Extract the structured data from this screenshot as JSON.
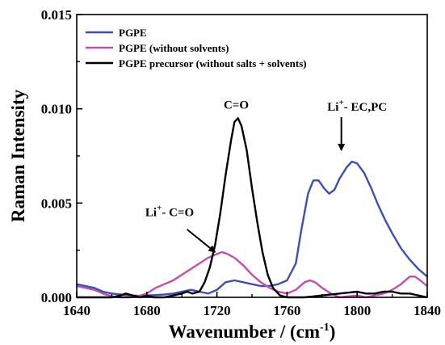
{
  "chart_data": {
    "type": "line",
    "title": "",
    "xlabel": "Wavenumber / (cm",
    "xlabel_sup": "-1",
    "xlabel_close": ")",
    "ylabel": "Raman Intensity",
    "xlim": [
      1640,
      1840
    ],
    "ylim": [
      0,
      0.015
    ],
    "x_ticks": [
      1640,
      1680,
      1720,
      1760,
      1800,
      1840
    ],
    "x_tick_labels": [
      "1640",
      "1680",
      "1720",
      "1760",
      "1800",
      "1840"
    ],
    "y_ticks": [
      0,
      0.005,
      0.01,
      0.015
    ],
    "y_tick_labels": [
      "0.000",
      "0.005",
      "0.010",
      "0.015"
    ],
    "grid": false,
    "legend_position": "top-left",
    "series": [
      {
        "name": "PGPE",
        "color": "#3d4fb0",
        "points": [
          [
            1640,
            0.0007
          ],
          [
            1645,
            0.0006
          ],
          [
            1650,
            0.0005
          ],
          [
            1655,
            0.0003
          ],
          [
            1660,
            0.0002
          ],
          [
            1665,
            0.00015
          ],
          [
            1670,
            0.0001
          ],
          [
            1675,
            8e-05
          ],
          [
            1680,
            0.0001
          ],
          [
            1685,
            0.00012
          ],
          [
            1690,
            0.00015
          ],
          [
            1695,
            0.0002
          ],
          [
            1700,
            0.0003
          ],
          [
            1705,
            0.0004
          ],
          [
            1710,
            0.0003
          ],
          [
            1715,
            0.0002
          ],
          [
            1720,
            0.0004
          ],
          [
            1725,
            0.0008
          ],
          [
            1730,
            0.0009
          ],
          [
            1735,
            0.0008
          ],
          [
            1740,
            0.0007
          ],
          [
            1745,
            0.0006
          ],
          [
            1750,
            0.0006
          ],
          [
            1755,
            0.0007
          ],
          [
            1760,
            0.0009
          ],
          [
            1765,
            0.0018
          ],
          [
            1768,
            0.0035
          ],
          [
            1772,
            0.0055
          ],
          [
            1775,
            0.0062
          ],
          [
            1778,
            0.0062
          ],
          [
            1781,
            0.0058
          ],
          [
            1784,
            0.0055
          ],
          [
            1787,
            0.0057
          ],
          [
            1790,
            0.0063
          ],
          [
            1794,
            0.0069
          ],
          [
            1797,
            0.0072
          ],
          [
            1800,
            0.0071
          ],
          [
            1804,
            0.0066
          ],
          [
            1808,
            0.0058
          ],
          [
            1812,
            0.0049
          ],
          [
            1816,
            0.0041
          ],
          [
            1820,
            0.0034
          ],
          [
            1825,
            0.0026
          ],
          [
            1830,
            0.002
          ],
          [
            1835,
            0.0015
          ],
          [
            1840,
            0.0011
          ]
        ]
      },
      {
        "name": "PGPE (without solvents)",
        "color": "#c04fb0",
        "points": [
          [
            1640,
            0.0006
          ],
          [
            1645,
            0.0005
          ],
          [
            1650,
            0.0004
          ],
          [
            1655,
            0.0002
          ],
          [
            1660,
            5e-05
          ],
          [
            1665,
            0.0
          ],
          [
            1670,
            0.0
          ],
          [
            1675,
            5e-05
          ],
          [
            1680,
            0.0002
          ],
          [
            1685,
            0.0005
          ],
          [
            1690,
            0.0007
          ],
          [
            1695,
            0.0009
          ],
          [
            1700,
            0.0012
          ],
          [
            1705,
            0.0015
          ],
          [
            1710,
            0.0018
          ],
          [
            1715,
            0.0021
          ],
          [
            1720,
            0.0023
          ],
          [
            1723,
            0.0024
          ],
          [
            1726,
            0.0023
          ],
          [
            1730,
            0.0021
          ],
          [
            1735,
            0.0017
          ],
          [
            1740,
            0.0012
          ],
          [
            1745,
            0.0008
          ],
          [
            1750,
            0.0005
          ],
          [
            1755,
            0.0003
          ],
          [
            1760,
            0.0002
          ],
          [
            1765,
            0.0004
          ],
          [
            1770,
            0.0008
          ],
          [
            1773,
            0.0009
          ],
          [
            1776,
            0.0008
          ],
          [
            1780,
            0.0005
          ],
          [
            1785,
            0.0002
          ],
          [
            1790,
            0.0
          ],
          [
            1795,
            5e-05
          ],
          [
            1800,
            0.0001
          ],
          [
            1805,
            0.0
          ],
          [
            1810,
            0.0001
          ],
          [
            1815,
            0.0002
          ],
          [
            1820,
            0.0004
          ],
          [
            1825,
            0.0007
          ],
          [
            1830,
            0.0011
          ],
          [
            1833,
            0.0011
          ],
          [
            1836,
            0.0009
          ],
          [
            1840,
            0.0006
          ]
        ]
      },
      {
        "name": "PGPE precursor (without salts + solvents)",
        "color": "#000000",
        "points": [
          [
            1640,
            0.0
          ],
          [
            1650,
            0.0
          ],
          [
            1660,
            0.0
          ],
          [
            1665,
            0.0001
          ],
          [
            1668,
            0.0002
          ],
          [
            1672,
            0.0001
          ],
          [
            1676,
            0.0
          ],
          [
            1680,
            0.0001
          ],
          [
            1684,
            0.0
          ],
          [
            1690,
            0.0
          ],
          [
            1695,
            0.0001
          ],
          [
            1700,
            0.0002
          ],
          [
            1703,
            0.0003
          ],
          [
            1706,
            0.0002
          ],
          [
            1710,
            0.0003
          ],
          [
            1713,
            0.0008
          ],
          [
            1716,
            0.0016
          ],
          [
            1719,
            0.0028
          ],
          [
            1722,
            0.0045
          ],
          [
            1725,
            0.0065
          ],
          [
            1728,
            0.0083
          ],
          [
            1730,
            0.0093
          ],
          [
            1732,
            0.0095
          ],
          [
            1734,
            0.0091
          ],
          [
            1737,
            0.0078
          ],
          [
            1740,
            0.0058
          ],
          [
            1743,
            0.004
          ],
          [
            1746,
            0.0024
          ],
          [
            1749,
            0.0012
          ],
          [
            1752,
            0.0005
          ],
          [
            1756,
            0.0001
          ],
          [
            1760,
            0.0
          ],
          [
            1770,
            0.0
          ],
          [
            1780,
            0.0001
          ],
          [
            1790,
            0.0002
          ],
          [
            1800,
            0.0003
          ],
          [
            1805,
            0.0002
          ],
          [
            1810,
            0.0002
          ],
          [
            1815,
            0.0003
          ],
          [
            1820,
            0.0003
          ],
          [
            1825,
            0.0002
          ],
          [
            1830,
            0.0002
          ],
          [
            1835,
            0.0001
          ],
          [
            1840,
            0.0
          ]
        ]
      }
    ],
    "annotations": [
      {
        "label": "C=O",
        "x": 1731,
        "y": 0.01
      },
      {
        "label": "Li",
        "label_sup": "+",
        "label_rest": "- EC,PC",
        "x": 1800,
        "y": 0.0099,
        "arrow_to": [
          1791,
          0.0078
        ]
      },
      {
        "label": "Li",
        "label_sup": "+",
        "label_rest": "- C=O",
        "x": 1693,
        "y": 0.0043,
        "arrow_from": [
          1703,
          0.0036
        ],
        "arrow_to": [
          1719,
          0.0024
        ]
      }
    ]
  }
}
